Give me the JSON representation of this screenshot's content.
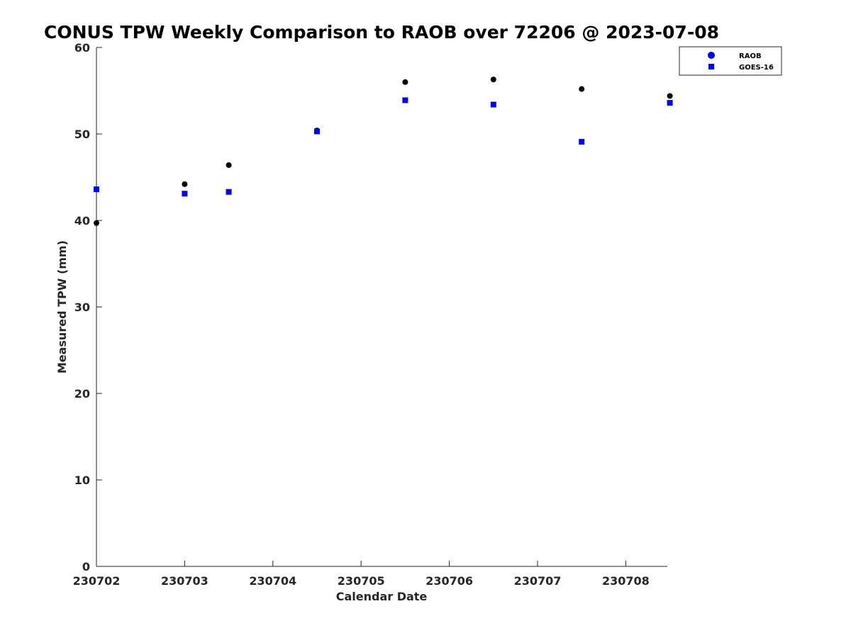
{
  "chart_data": {
    "type": "scatter",
    "title": "CONUS TPW Weekly Comparison to RAOB over 72206 @ 2023-07-08",
    "xlabel": "Calendar Date",
    "ylabel": "Measured TPW (mm)",
    "x_tick_labels": [
      "230702",
      "230703",
      "230704",
      "230705",
      "230706",
      "230707",
      "230708"
    ],
    "y_ticks": [
      0,
      10,
      20,
      30,
      40,
      50,
      60
    ],
    "xlim": [
      "230702",
      "230708 12Z"
    ],
    "ylim": [
      0,
      60
    ],
    "grid": false,
    "legend_position": "top-right",
    "x": [
      "230702 00Z",
      "230703 00Z",
      "230703 12Z",
      "230704 12Z",
      "230705 12Z",
      "230706 12Z",
      "230707 12Z",
      "230708 12Z"
    ],
    "series": [
      {
        "name": "RAOB",
        "marker": "circle",
        "color": "#000000",
        "legend_color": "#0000ff",
        "values": [
          39.7,
          44.2,
          46.4,
          50.4,
          56.0,
          56.3,
          55.2,
          54.4
        ]
      },
      {
        "name": "GOES-16",
        "marker": "square",
        "color": "#0000ff",
        "values": [
          43.6,
          43.1,
          43.3,
          50.3,
          53.9,
          53.4,
          49.1,
          53.6
        ]
      }
    ]
  }
}
